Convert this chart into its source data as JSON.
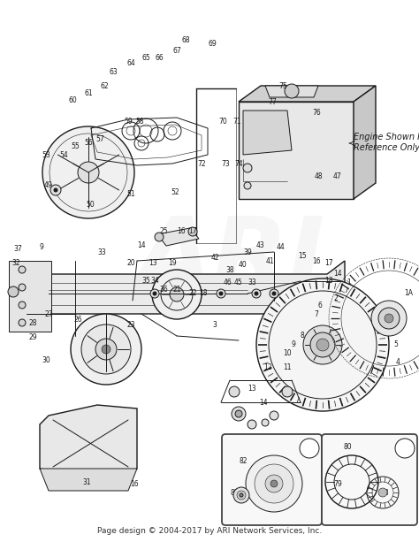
{
  "footer": "Page design © 2004-2017 by ARI Network Services, Inc.",
  "footer_fontsize": 6.5,
  "bg_color": "#ffffff",
  "fig_width": 4.74,
  "fig_height": 6.13,
  "dpi": 100,
  "engine_label_line1": "Engine Shown For",
  "engine_label_line2": "Reference Only",
  "engine_label_fontsize": 7,
  "part_number_fontsize": 5.5,
  "diagram_color": "#1a1a1a",
  "watermark_text": "ARI",
  "watermark_alpha": 0.07,
  "watermark_fontsize": 80
}
